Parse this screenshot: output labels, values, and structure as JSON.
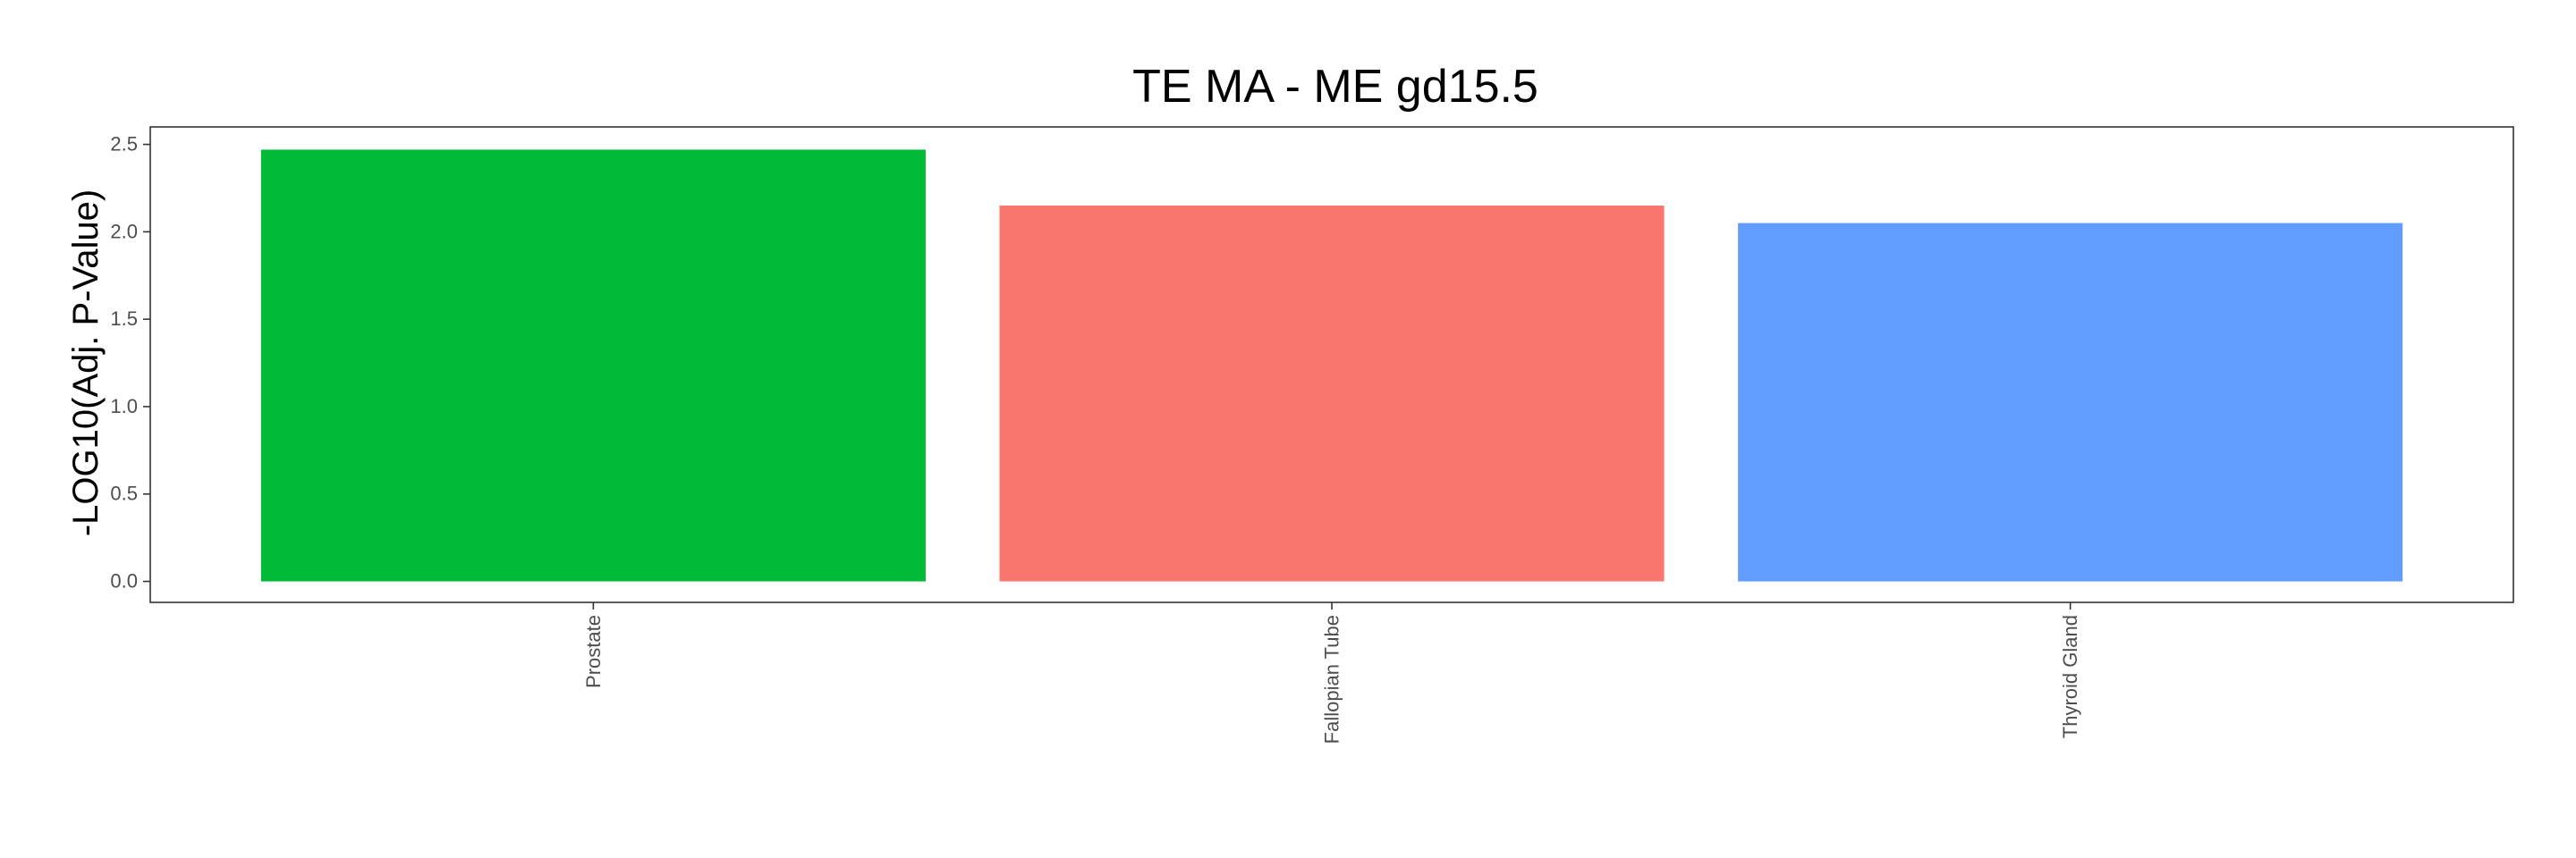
{
  "chart_data": {
    "type": "bar",
    "title": "TE MA - ME gd15.5",
    "xlabel": "",
    "ylabel": "-LOG10(Adj. P-Value)",
    "categories": [
      "Prostate",
      "Fallopian Tube",
      "Thyroid Gland"
    ],
    "values": [
      2.47,
      2.15,
      2.05
    ],
    "colors": [
      "#00BA38",
      "#F8766D",
      "#619CFF"
    ],
    "ylim": [
      -0.12,
      2.6
    ],
    "yticks": [
      0.0,
      0.5,
      1.0,
      1.5,
      2.0,
      2.5
    ],
    "ytick_labels": [
      "0.0",
      "0.5",
      "1.0",
      "1.5",
      "2.0",
      "2.5"
    ],
    "grid": false,
    "legend": "none"
  }
}
